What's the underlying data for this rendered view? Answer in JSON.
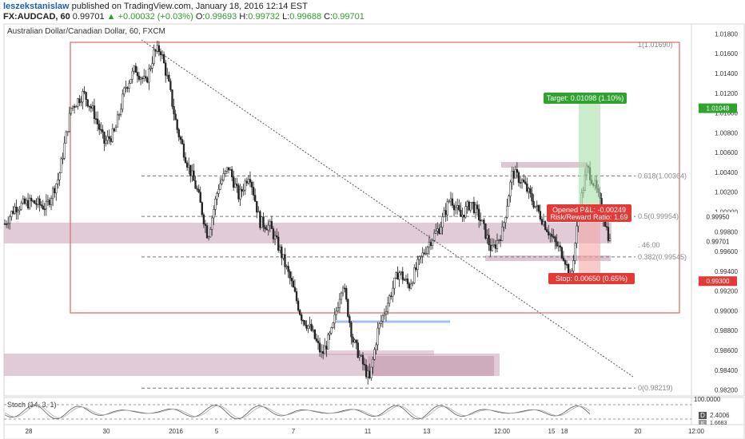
{
  "header": {
    "user": "leszekstanislaw",
    "published": "published on TradingView.com, January 18, 2016 12:14 EST",
    "symbol": "FX:AUDCAD, 60",
    "last": "0.99701",
    "change": "▲ +0.00032 (+0.03%)",
    "o_label": "O:",
    "o": "0.99693",
    "h_label": "H:",
    "h": "0.99732",
    "l_label": "L:",
    "l": "0.99688",
    "c_label": "C:",
    "c": "0.99701"
  },
  "chart_data": {
    "type": "candlestick",
    "title": "Australian Dollar/Canadian Dollar, 60, FXCM",
    "ylim": [
      0.9814,
      1.019
    ],
    "y_ticks": [
      "1.01800",
      "1.01600",
      "1.01400",
      "1.01200",
      "1.01000",
      "1.00800",
      "1.00600",
      "1.00400",
      "1.00200",
      "1.00000",
      "0.99800",
      "0.99600",
      "0.99400",
      "0.99200",
      "0.99000",
      "0.98800",
      "0.98600",
      "0.98400",
      "0.98200"
    ],
    "x_ticks": [
      "28",
      "30",
      "2016",
      "5",
      "7",
      "11",
      "13",
      "12:00",
      "15",
      "18",
      "20",
      "12:00"
    ],
    "price_path": [
      {
        "x": 0.0,
        "y": 0.9988
      },
      {
        "x": 0.5,
        "y": 1.0005
      },
      {
        "x": 1.3,
        "y": 1.001
      },
      {
        "x": 2.0,
        "y": 1.0005
      },
      {
        "x": 2.6,
        "y": 1.0035
      },
      {
        "x": 3.2,
        "y": 1.0105
      },
      {
        "x": 3.8,
        "y": 1.012
      },
      {
        "x": 4.3,
        "y": 1.01
      },
      {
        "x": 4.8,
        "y": 1.007
      },
      {
        "x": 5.3,
        "y": 1.008
      },
      {
        "x": 5.8,
        "y": 1.0125
      },
      {
        "x": 6.3,
        "y": 1.0145
      },
      {
        "x": 6.8,
        "y": 1.013
      },
      {
        "x": 7.2,
        "y": 1.016
      },
      {
        "x": 7.5,
        "y": 1.0165
      },
      {
        "x": 7.9,
        "y": 1.013
      },
      {
        "x": 8.3,
        "y": 1.0085
      },
      {
        "x": 8.8,
        "y": 1.005
      },
      {
        "x": 9.3,
        "y": 1.002
      },
      {
        "x": 9.8,
        "y": 0.9975
      },
      {
        "x": 10.3,
        "y": 1.0025
      },
      {
        "x": 10.8,
        "y": 1.0045
      },
      {
        "x": 11.3,
        "y": 1.0015
      },
      {
        "x": 11.8,
        "y": 1.004
      },
      {
        "x": 12.3,
        "y": 0.999
      },
      {
        "x": 12.8,
        "y": 0.9985
      },
      {
        "x": 13.3,
        "y": 0.996
      },
      {
        "x": 13.8,
        "y": 0.993
      },
      {
        "x": 14.3,
        "y": 0.9895
      },
      {
        "x": 14.8,
        "y": 0.988
      },
      {
        "x": 15.3,
        "y": 0.9855
      },
      {
        "x": 15.8,
        "y": 0.988
      },
      {
        "x": 16.3,
        "y": 0.993
      },
      {
        "x": 16.8,
        "y": 0.987
      },
      {
        "x": 17.2,
        "y": 0.985
      },
      {
        "x": 17.6,
        "y": 0.983
      },
      {
        "x": 18.0,
        "y": 0.988
      },
      {
        "x": 18.5,
        "y": 0.991
      },
      {
        "x": 19.0,
        "y": 0.994
      },
      {
        "x": 19.5,
        "y": 0.9925
      },
      {
        "x": 20.0,
        "y": 0.995
      },
      {
        "x": 20.5,
        "y": 0.997
      },
      {
        "x": 21.0,
        "y": 0.9985
      },
      {
        "x": 21.5,
        "y": 1.0015
      },
      {
        "x": 22.0,
        "y": 0.9995
      },
      {
        "x": 22.5,
        "y": 1.001
      },
      {
        "x": 23.0,
        "y": 0.999
      },
      {
        "x": 23.5,
        "y": 0.996
      },
      {
        "x": 24.0,
        "y": 0.998
      },
      {
        "x": 24.5,
        "y": 1.004
      },
      {
        "x": 25.0,
        "y": 1.003
      },
      {
        "x": 25.5,
        "y": 1.001
      },
      {
        "x": 26.0,
        "y": 0.999
      },
      {
        "x": 26.5,
        "y": 0.997
      },
      {
        "x": 27.0,
        "y": 0.9955
      },
      {
        "x": 27.3,
        "y": 0.993
      },
      {
        "x": 27.7,
        "y": 1.0
      },
      {
        "x": 28.1,
        "y": 1.0045
      },
      {
        "x": 28.5,
        "y": 1.0025
      },
      {
        "x": 28.9,
        "y": 0.9995
      },
      {
        "x": 29.2,
        "y": 0.997
      }
    ],
    "drawings": {
      "fib_levels": [
        {
          "label": "1(1.01690)",
          "price": 1.0169
        },
        {
          "label": "0.618(1.00364)",
          "price": 1.00364
        },
        {
          "label": "0.5(0.99954)",
          "price": 0.99954
        },
        {
          "label": "0.382(0.99545)",
          "price": 0.99545
        },
        {
          "label": "0(0.98219)",
          "price": 0.98219
        }
      ],
      "fib_partial_label": ". 46.00",
      "target_label": "Target: 0.01098 (1.10%)",
      "stop_label": "Stop: 0.00650 (0.65%)",
      "pnl_label": "Opened P&L: -0.00249",
      "rr_label": "Risk/Reward Ratio: 1.69",
      "target_price": "1.01048",
      "current_price": "0.99950",
      "last_price": "0.99701",
      "stop_price": "0.99300"
    },
    "oscillator": {
      "label": "Stoch (14, 3, 1)",
      "axis_top": "100.0000",
      "value_d": "2.4006",
      "value_k": "1.6683",
      "d_letter": "D",
      "k_letter": "K"
    }
  },
  "colors": {
    "candle": "#222222",
    "fib_box": "#e06666",
    "zone": "#c9a0b6",
    "target": "#2fa22f",
    "stop": "#e53935",
    "trend": "#555555",
    "blue_line": "#9ec2ef"
  }
}
